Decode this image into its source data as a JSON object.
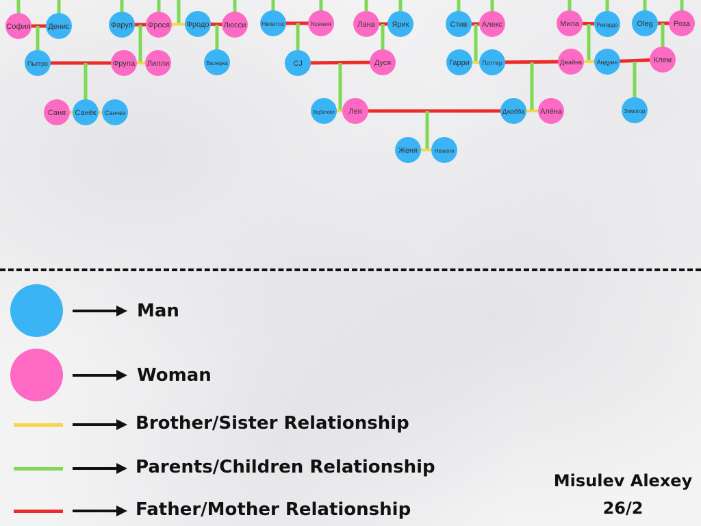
{
  "colors": {
    "man": "#3bb4f5",
    "woman": "#ff6bc4",
    "sibling": "#f5d74a",
    "parent_child": "#7ed957",
    "spouse": "#ee2b2b"
  },
  "people": [
    {
      "id": "sofia",
      "name": "София",
      "gender": "woman"
    },
    {
      "id": "denis",
      "name": "Денис",
      "gender": "man"
    },
    {
      "id": "pietro",
      "name": "Пьетро",
      "gender": "man"
    },
    {
      "id": "farul",
      "name": "Фарул",
      "gender": "man"
    },
    {
      "id": "frosia",
      "name": "Фрося",
      "gender": "woman"
    },
    {
      "id": "frodo",
      "name": "Фродо",
      "gender": "man"
    },
    {
      "id": "lyussi",
      "name": "Люсси",
      "gender": "woman"
    },
    {
      "id": "frula",
      "name": "Фрула",
      "gender": "woman"
    },
    {
      "id": "lilli",
      "name": "Лилли",
      "gender": "woman"
    },
    {
      "id": "valerka",
      "name": "Валерка",
      "gender": "man"
    },
    {
      "id": "sanya",
      "name": "Саня",
      "gender": "woman"
    },
    {
      "id": "sanyok",
      "name": "Санёк",
      "gender": "man"
    },
    {
      "id": "sanches",
      "name": "Санчез",
      "gender": "man"
    },
    {
      "id": "nekitos",
      "name": "Некитос",
      "gender": "man"
    },
    {
      "id": "ksenia",
      "name": "Ксения",
      "gender": "woman"
    },
    {
      "id": "lana",
      "name": "Лана",
      "gender": "woman"
    },
    {
      "id": "yarik",
      "name": "Ярик",
      "gender": "man"
    },
    {
      "id": "cj",
      "name": "CJ",
      "gender": "man"
    },
    {
      "id": "dusya",
      "name": "Дуся",
      "gender": "woman"
    },
    {
      "id": "bigsmoke",
      "name": "BigSmoke",
      "gender": "man"
    },
    {
      "id": "leya",
      "name": "Лея",
      "gender": "woman"
    },
    {
      "id": "zhenya",
      "name": "Женя",
      "gender": "man"
    },
    {
      "id": "nezhenya",
      "name": "Неженя",
      "gender": "man"
    },
    {
      "id": "stiv",
      "name": "Стив",
      "gender": "man"
    },
    {
      "id": "aleks",
      "name": "Алекс",
      "gender": "woman"
    },
    {
      "id": "garri",
      "name": "Гарри",
      "gender": "man"
    },
    {
      "id": "potter",
      "name": "Поттер",
      "gender": "man"
    },
    {
      "id": "dzhabba",
      "name": "Джабба",
      "gender": "man"
    },
    {
      "id": "alyona",
      "name": "Алёна",
      "gender": "woman"
    },
    {
      "id": "mila",
      "name": "Мила",
      "gender": "woman"
    },
    {
      "id": "rikardo",
      "name": "Рикардо",
      "gender": "man"
    },
    {
      "id": "dzhaina",
      "name": "Джайна",
      "gender": "woman"
    },
    {
      "id": "anduin",
      "name": "Андуин",
      "gender": "man"
    },
    {
      "id": "oleg",
      "name": "Oleg",
      "gender": "man"
    },
    {
      "id": "roza",
      "name": "Роза",
      "gender": "woman"
    },
    {
      "id": "klem",
      "name": "Клем",
      "gender": "woman"
    },
    {
      "id": "zimogor",
      "name": "Зимогор",
      "gender": "man"
    }
  ],
  "legend": {
    "man": "Man",
    "woman": "Woman",
    "sibling": "Brother/Sister Relationship",
    "parent_child": "Parents/Children Relationship",
    "spouse": "Father/Mother Relationship"
  },
  "author": {
    "name": "Misulev Alexey",
    "group": "26/2"
  }
}
